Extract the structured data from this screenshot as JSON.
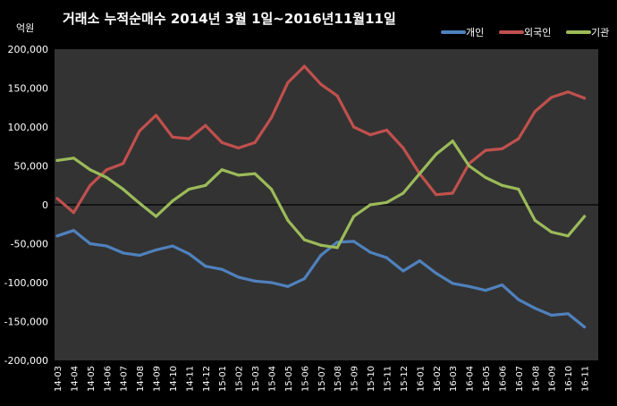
{
  "chart_data": {
    "type": "line",
    "title": "거래소 누적순매수 2014년 3월 1일~2016년11월11일",
    "unit_label": "억원",
    "categories": [
      "14-03",
      "14-04",
      "14-05",
      "14-06",
      "14-07",
      "14-08",
      "14-09",
      "14-10",
      "14-11",
      "14-12",
      "15-01",
      "15-02",
      "15-03",
      "15-04",
      "15-05",
      "15-06",
      "15-07",
      "15-08",
      "15-09",
      "15-10",
      "15-11",
      "15-12",
      "16-01",
      "16-02",
      "16-03",
      "16-04",
      "16-05",
      "16-06",
      "16-07",
      "16-08",
      "16-09",
      "16-10",
      "16-11"
    ],
    "y_ticks": [
      "200,000",
      "150,000",
      "100,000",
      "50,000",
      "0",
      "-50,000",
      "-100,000",
      "-150,000",
      "-200,000"
    ],
    "ylim": [
      -200000,
      200000
    ],
    "grid": false,
    "legend_position": "top-right",
    "series": [
      {
        "name": "개인",
        "color": "#4f81bd",
        "values": [
          -40000,
          -33000,
          -50000,
          -53000,
          -62000,
          -65000,
          -58000,
          -53000,
          -63000,
          -79000,
          -83000,
          -93000,
          -98000,
          -100000,
          -105000,
          -95000,
          -65000,
          -48000,
          -47000,
          -61000,
          -68000,
          -85000,
          -72000,
          -88000,
          -101000,
          -105000,
          -110000,
          -103000,
          -122000,
          -133000,
          -142000,
          -140000,
          -157000
        ]
      },
      {
        "name": "외국인",
        "color": "#c0504d",
        "values": [
          8000,
          -10000,
          25000,
          45000,
          53000,
          95000,
          115000,
          87000,
          85000,
          102000,
          80000,
          73000,
          80000,
          112000,
          157000,
          178000,
          155000,
          140000,
          100000,
          90000,
          96000,
          73000,
          40000,
          13000,
          15000,
          53000,
          70000,
          72000,
          85000,
          120000,
          138000,
          145000,
          137000
        ]
      },
      {
        "name": "기관",
        "color": "#9bbb59",
        "values": [
          57000,
          60000,
          45000,
          35000,
          20000,
          2000,
          -15000,
          5000,
          20000,
          25000,
          45000,
          38000,
          40000,
          20000,
          -20000,
          -45000,
          -52000,
          -55000,
          -15000,
          0,
          3000,
          15000,
          40000,
          65000,
          82000,
          50000,
          35000,
          25000,
          20000,
          -20000,
          -35000,
          -40000,
          -15000
        ]
      }
    ]
  }
}
